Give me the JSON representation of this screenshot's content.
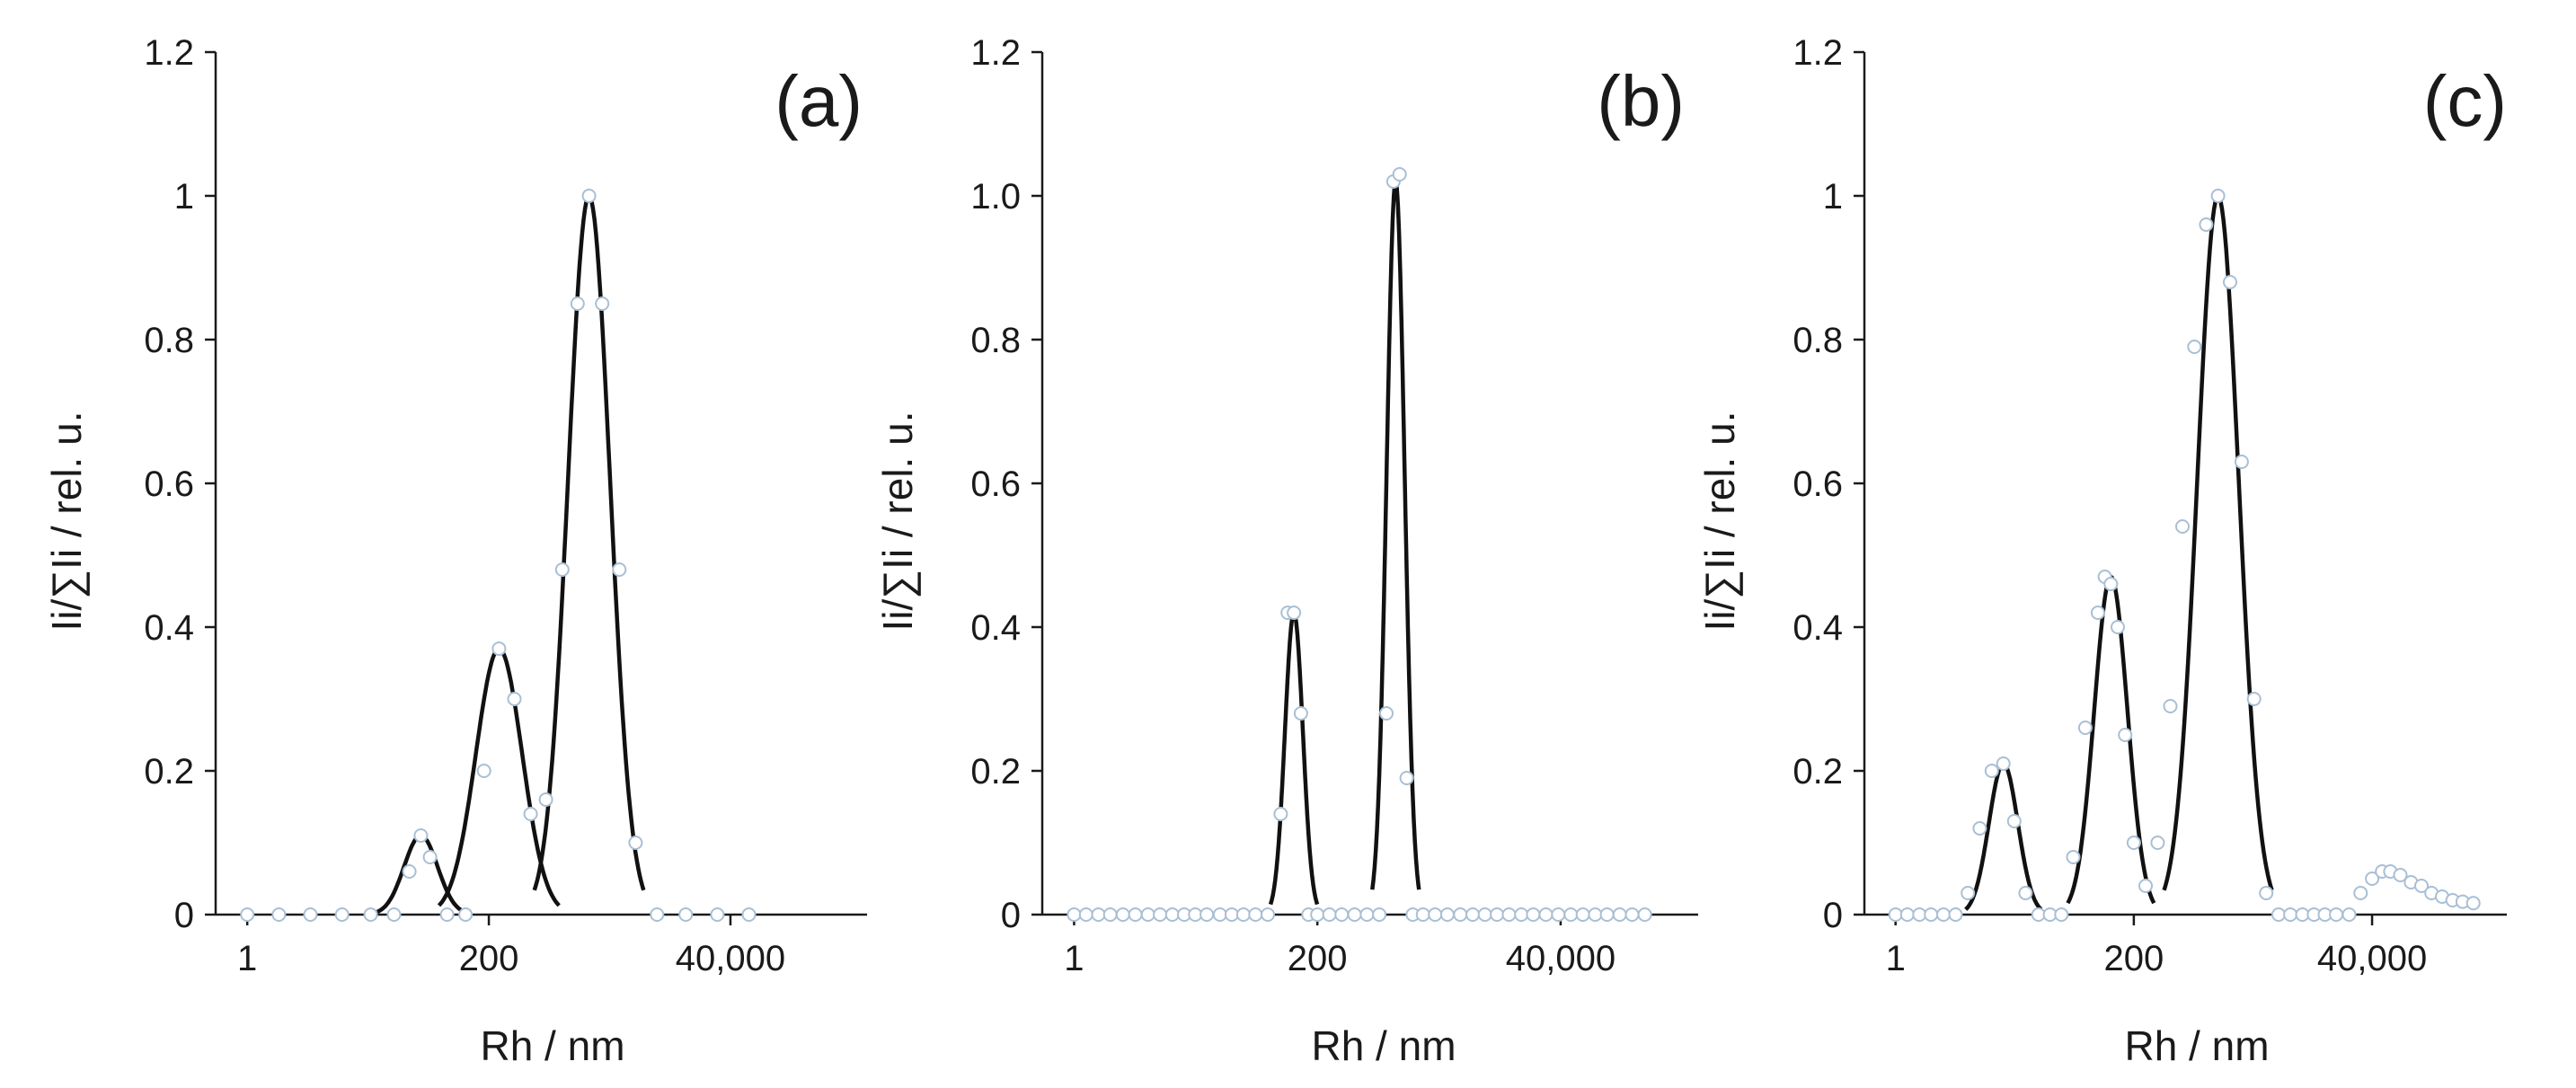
{
  "chart_data": [
    {
      "type": "line",
      "panel_label": "(a)",
      "xlabel": "Rh / nm",
      "ylabel": "Ii/∑Ii / rel. u.",
      "x_scale": "log",
      "xlim": [
        0.5,
        800000
      ],
      "x_ticks": [
        1,
        200,
        40000
      ],
      "x_tick_labels": [
        "1",
        "200",
        "40,000"
      ],
      "ylim": [
        0,
        1.2
      ],
      "y_ticks": [
        0,
        0.2,
        0.4,
        0.6,
        0.8,
        1,
        1.2
      ],
      "y_tick_labels": [
        "0",
        "0.2",
        "0.4",
        "0.6",
        "0.8",
        "1",
        "1.2"
      ],
      "grid": false,
      "legend": "none",
      "peaks": [
        {
          "center_nm": 45,
          "height": 0.11,
          "log_width": 0.16
        },
        {
          "center_nm": 250,
          "height": 0.37,
          "log_width": 0.22
        },
        {
          "center_nm": 1800,
          "height": 1.0,
          "log_width": 0.2
        }
      ],
      "series": [
        {
          "x": [
            1,
            2,
            4,
            8,
            15,
            25,
            35,
            45,
            55,
            80,
            120,
            180,
            250,
            350,
            500,
            700,
            1000,
            1400,
            1800,
            2400,
            3500,
            5000,
            8000,
            15000,
            30000,
            60000
          ],
          "y": [
            0,
            0,
            0,
            0,
            0,
            0,
            0.06,
            0.11,
            0.08,
            0,
            0,
            0.2,
            0.37,
            0.3,
            0.14,
            0.16,
            0.48,
            0.85,
            1.0,
            0.85,
            0.48,
            0.1,
            0,
            0,
            0,
            0
          ]
        }
      ]
    },
    {
      "type": "line",
      "panel_label": "(b)",
      "xlabel": "Rh / nm",
      "ylabel": "Ii/∑Ii / rel. u.",
      "x_scale": "log",
      "xlim": [
        0.5,
        800000
      ],
      "x_ticks": [
        1,
        200,
        40000
      ],
      "x_tick_labels": [
        "1",
        "200",
        "40,000"
      ],
      "ylim": [
        0,
        1.2
      ],
      "y_ticks": [
        0,
        0.2,
        0.4,
        0.6,
        0.8,
        1.0,
        1.2
      ],
      "y_tick_labels": [
        "0",
        "0.2",
        "0.4",
        "0.6",
        "0.8",
        "1.0",
        "1.2"
      ],
      "grid": false,
      "legend": "none",
      "peaks": [
        {
          "center_nm": 120,
          "height": 0.42,
          "log_width": 0.085
        },
        {
          "center_nm": 1100,
          "height": 1.02,
          "log_width": 0.085
        }
      ],
      "series": [
        {
          "x": [
            1,
            1.3,
            1.7,
            2.2,
            2.9,
            3.8,
            5,
            6.5,
            8.5,
            11,
            14,
            18,
            24,
            31,
            40,
            52,
            68,
            90,
            105,
            120,
            140,
            165,
            200,
            260,
            340,
            450,
            590,
            770,
            900,
            1050,
            1200,
            1400,
            1600,
            2000,
            2600,
            3400,
            4500,
            5900,
            7700,
            10000,
            13000,
            17000,
            22000,
            29000,
            38000,
            50000,
            65000,
            85000,
            110000,
            145000,
            190000,
            250000
          ],
          "y": [
            0,
            0,
            0,
            0,
            0,
            0,
            0,
            0,
            0,
            0,
            0,
            0,
            0,
            0,
            0,
            0,
            0,
            0.14,
            0.42,
            0.42,
            0.28,
            0,
            0,
            0,
            0,
            0,
            0,
            0,
            0.28,
            1.02,
            1.03,
            0.19,
            0,
            0,
            0,
            0,
            0,
            0,
            0,
            0,
            0,
            0,
            0,
            0,
            0,
            0,
            0,
            0,
            0,
            0,
            0,
            0
          ]
        }
      ]
    },
    {
      "type": "line",
      "panel_label": "(c)",
      "xlabel": "Rh / nm",
      "ylabel": "Ii/∑Ii / rel. u.",
      "x_scale": "log",
      "xlim": [
        0.5,
        800000
      ],
      "x_ticks": [
        1,
        200,
        40000
      ],
      "x_tick_labels": [
        "1",
        "200",
        "40,000"
      ],
      "ylim": [
        0,
        1.2
      ],
      "y_ticks": [
        0,
        0.2,
        0.4,
        0.6,
        0.8,
        1,
        1.2
      ],
      "y_tick_labels": [
        "0",
        "0.2",
        "0.4",
        "0.6",
        "0.8",
        "1",
        "1.2"
      ],
      "grid": false,
      "legend": "none",
      "peaks": [
        {
          "center_nm": 11,
          "height": 0.21,
          "log_width": 0.14
        },
        {
          "center_nm": 120,
          "height": 0.47,
          "log_width": 0.16
        },
        {
          "center_nm": 1300,
          "height": 1.0,
          "log_width": 0.2
        }
      ],
      "series": [
        {
          "x": [
            1,
            1.3,
            1.7,
            2.2,
            2.9,
            3.8,
            5,
            6.5,
            8.5,
            11,
            14,
            18,
            24,
            31,
            40,
            52,
            68,
            90,
            105,
            120,
            140,
            165,
            200,
            260,
            340,
            450,
            590,
            770,
            1000,
            1300,
            1700,
            2200,
            2900,
            3800,
            5000,
            6500,
            8500,
            11000,
            14000,
            18000,
            24000,
            31000,
            40000,
            50000,
            60000,
            75000,
            95000,
            120000,
            150000,
            190000,
            240000,
            300000,
            380000
          ],
          "y": [
            0,
            0,
            0,
            0,
            0,
            0,
            0.03,
            0.12,
            0.2,
            0.21,
            0.13,
            0.03,
            0,
            0,
            0,
            0.08,
            0.26,
            0.42,
            0.47,
            0.46,
            0.4,
            0.25,
            0.1,
            0.04,
            0.1,
            0.29,
            0.54,
            0.79,
            0.96,
            1.0,
            0.88,
            0.63,
            0.3,
            0.03,
            0,
            0,
            0,
            0,
            0,
            0,
            0,
            0.03,
            0.05,
            0.06,
            0.06,
            0.055,
            0.045,
            0.04,
            0.03,
            0.025,
            0.02,
            0.018,
            0.016
          ]
        }
      ]
    }
  ]
}
